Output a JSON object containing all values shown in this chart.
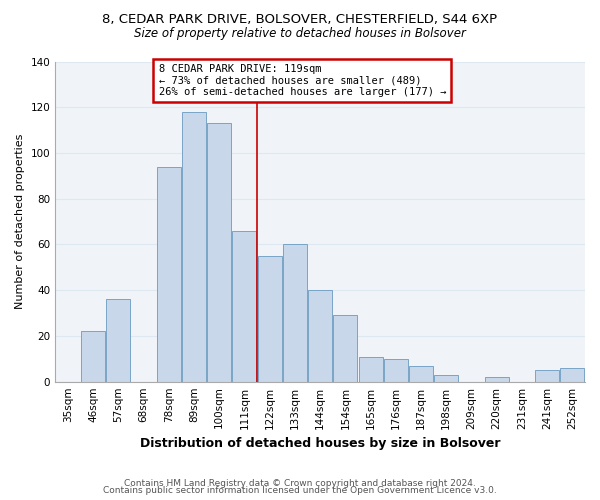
{
  "title1": "8, CEDAR PARK DRIVE, BOLSOVER, CHESTERFIELD, S44 6XP",
  "title2": "Size of property relative to detached houses in Bolsover",
  "xlabel": "Distribution of detached houses by size in Bolsover",
  "ylabel": "Number of detached properties",
  "categories": [
    "35sqm",
    "46sqm",
    "57sqm",
    "68sqm",
    "78sqm",
    "89sqm",
    "100sqm",
    "111sqm",
    "122sqm",
    "133sqm",
    "144sqm",
    "154sqm",
    "165sqm",
    "176sqm",
    "187sqm",
    "198sqm",
    "209sqm",
    "220sqm",
    "231sqm",
    "241sqm",
    "252sqm"
  ],
  "values": [
    0,
    22,
    36,
    0,
    94,
    118,
    113,
    66,
    55,
    60,
    40,
    29,
    11,
    10,
    7,
    3,
    0,
    2,
    0,
    5,
    6
  ],
  "bar_color": "#c8d8ea",
  "bar_edge_color": "#6a9abf",
  "highlight_line_x_label": "122sqm",
  "annotation_title": "8 CEDAR PARK DRIVE: 119sqm",
  "annotation_line1": "← 73% of detached houses are smaller (489)",
  "annotation_line2": "26% of semi-detached houses are larger (177) →",
  "annotation_box_color": "#ffffff",
  "annotation_box_edge_color": "#cc0000",
  "vline_color": "#cc0000",
  "ylim": [
    0,
    140
  ],
  "yticks": [
    0,
    20,
    40,
    60,
    80,
    100,
    120,
    140
  ],
  "footer1": "Contains HM Land Registry data © Crown copyright and database right 2024.",
  "footer2": "Contains public sector information licensed under the Open Government Licence v3.0.",
  "grid_color": "#dde8f0",
  "title1_fontsize": 9.5,
  "title2_fontsize": 8.5,
  "xlabel_fontsize": 9,
  "ylabel_fontsize": 8,
  "tick_fontsize": 7.5,
  "footer_fontsize": 6.5,
  "ann_fontsize": 7.5
}
